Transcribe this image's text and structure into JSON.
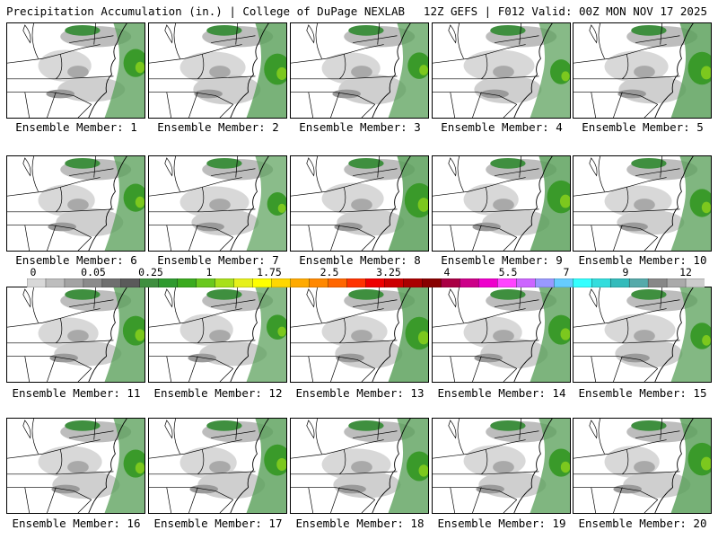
{
  "header": {
    "title_left": "Precipitation Accumulation (in.) | College of DuPage NEXLAB",
    "title_right": "12Z GEFS | F012 Valid: 00Z MON NOV 17 2025"
  },
  "panels": [
    {
      "label": "Ensemble Member: 1",
      "wet": 0.55
    },
    {
      "label": "Ensemble Member: 2",
      "wet": 0.65
    },
    {
      "label": "Ensemble Member: 3",
      "wet": 0.5
    },
    {
      "label": "Ensemble Member: 4",
      "wet": 0.45
    },
    {
      "label": "Ensemble Member: 5",
      "wet": 0.7
    },
    {
      "label": "Ensemble Member: 6",
      "wet": 0.55
    },
    {
      "label": "Ensemble Member: 7",
      "wet": 0.4
    },
    {
      "label": "Ensemble Member: 8",
      "wet": 0.75
    },
    {
      "label": "Ensemble Member: 9",
      "wet": 0.7
    },
    {
      "label": "Ensemble Member: 10",
      "wet": 0.55
    },
    {
      "label": "Ensemble Member: 11",
      "wet": 0.6
    },
    {
      "label": "Ensemble Member: 12",
      "wet": 0.45
    },
    {
      "label": "Ensemble Member: 13",
      "wet": 0.7
    },
    {
      "label": "Ensemble Member: 14",
      "wet": 0.6
    },
    {
      "label": "Ensemble Member: 15",
      "wet": 0.5
    },
    {
      "label": "Ensemble Member: 16",
      "wet": 0.55
    },
    {
      "label": "Ensemble Member: 17",
      "wet": 0.65
    },
    {
      "label": "Ensemble Member: 18",
      "wet": 0.6
    },
    {
      "label": "Ensemble Member: 19",
      "wet": 0.55
    },
    {
      "label": "Ensemble Member: 20",
      "wet": 0.7
    }
  ],
  "colorbar": {
    "labels": [
      "0",
      "0.05",
      "0.25",
      "1",
      "1.75",
      "2.5",
      "3.25",
      "4",
      "5.5",
      "7",
      "9",
      "12"
    ],
    "colors": [
      "#d8d8d8",
      "#bdbdbd",
      "#a3a3a3",
      "#8b8b8b",
      "#6f6f6f",
      "#5a5a5a",
      "#3f8f3f",
      "#2f9a2f",
      "#3aaa1e",
      "#6ac81e",
      "#a8e01a",
      "#e6f01a",
      "#ffff00",
      "#ffd700",
      "#ffaa00",
      "#ff8800",
      "#ff6600",
      "#ff3300",
      "#ee0000",
      "#cc0000",
      "#aa0000",
      "#880000",
      "#aa0044",
      "#cc0088",
      "#ee00cc",
      "#ff44ff",
      "#cc66ff",
      "#9999ff",
      "#66ccff",
      "#33ffff",
      "#33dddd",
      "#33bbbb",
      "#55aaaa",
      "#888888",
      "#aaaaaa",
      "#cccccc"
    ]
  }
}
